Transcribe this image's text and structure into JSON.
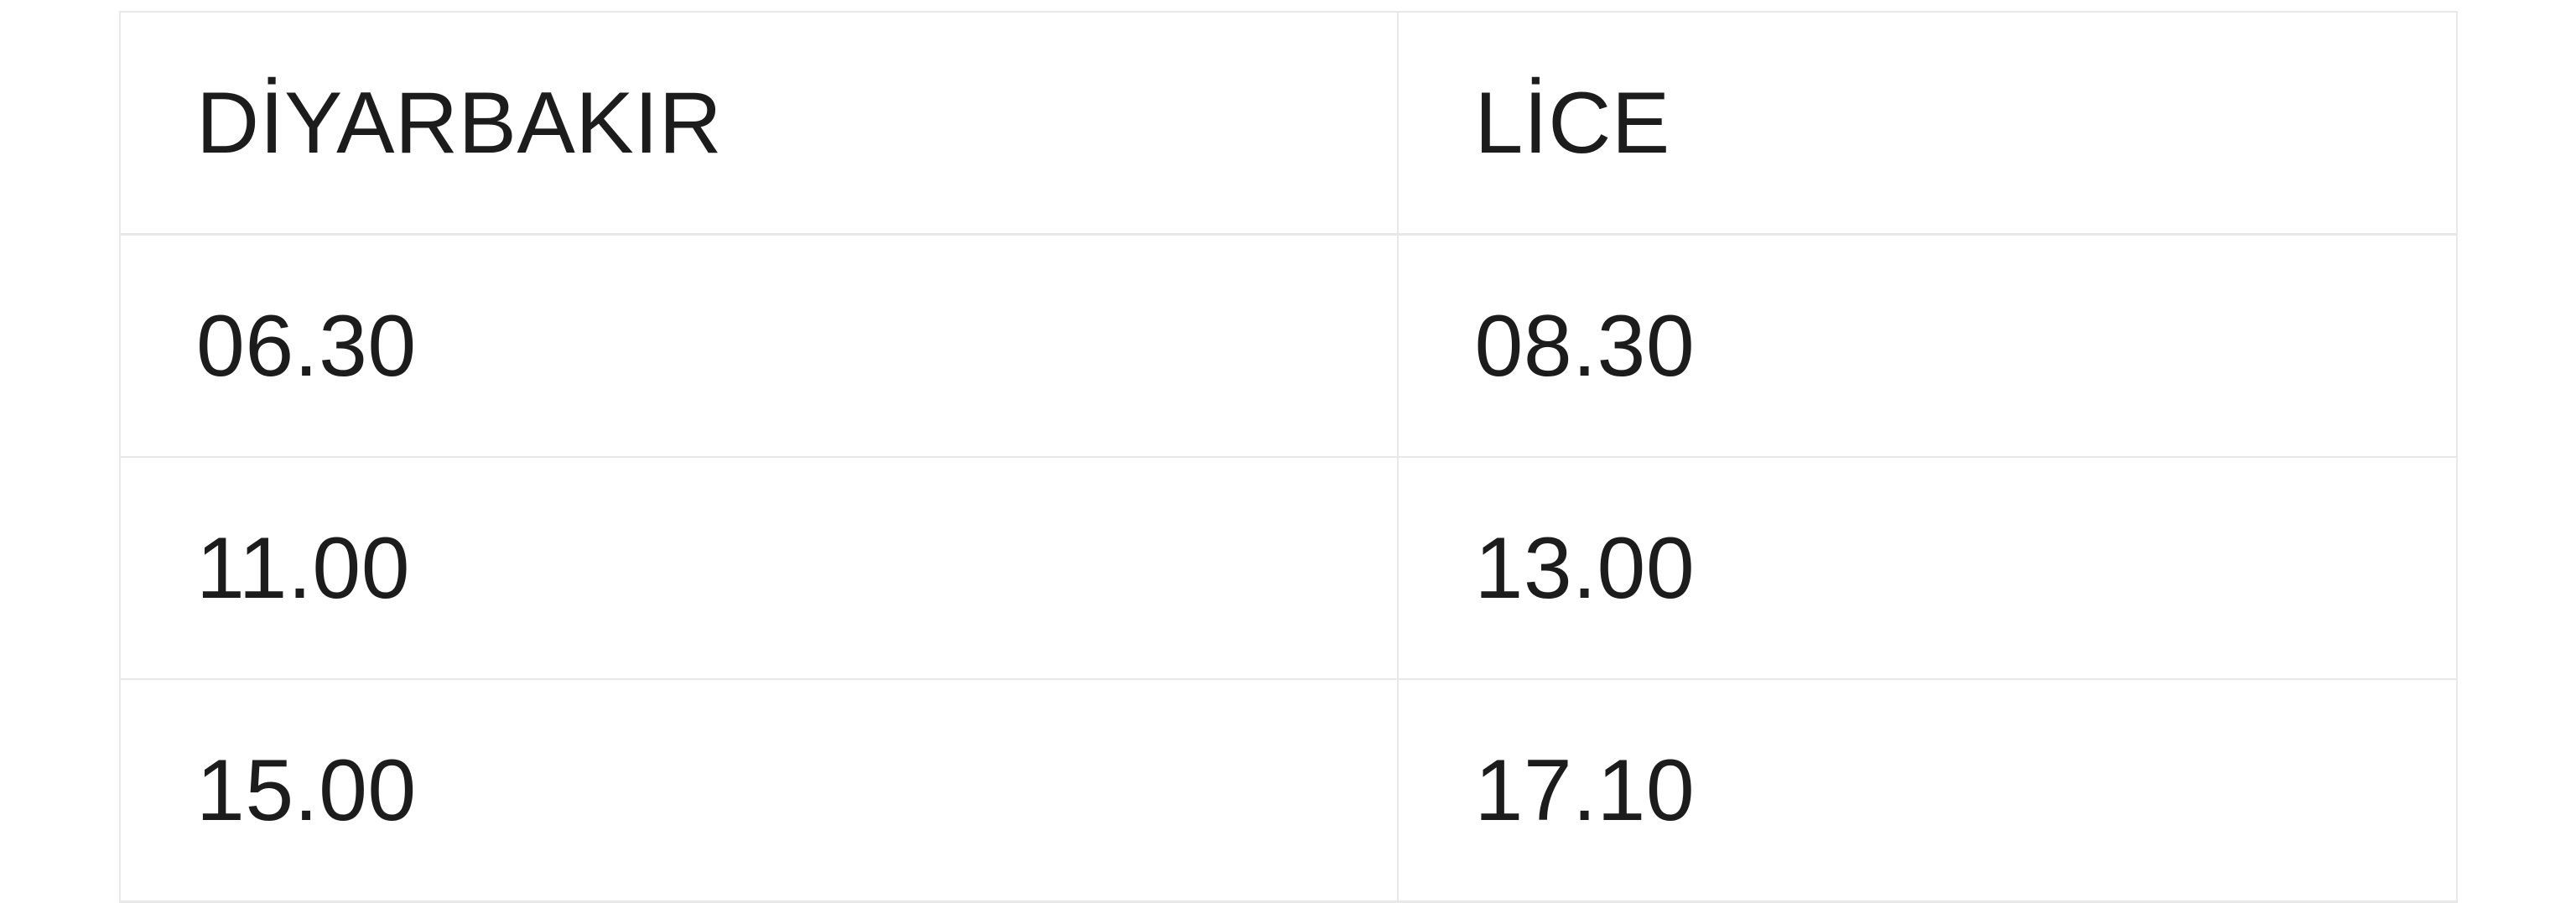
{
  "page": {
    "background_color": "#ffffff",
    "border_color": "#e8e8e8",
    "text_color": "#1c1c1c"
  },
  "table": {
    "columns": [
      {
        "label": "DİYARBAKIR"
      },
      {
        "label": "LİCE"
      }
    ],
    "rows": [
      {
        "cells": [
          "06.30",
          "08.30"
        ]
      },
      {
        "cells": [
          "11.00",
          "13.00"
        ]
      },
      {
        "cells": [
          "15.00",
          "17.10"
        ]
      }
    ]
  }
}
